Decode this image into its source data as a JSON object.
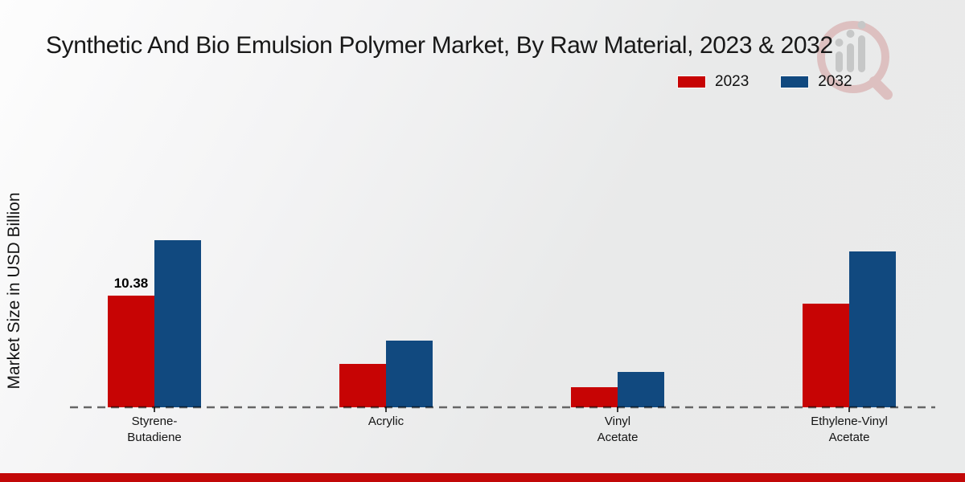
{
  "page": {
    "footer_bar_color": "#c20808"
  },
  "branding": {
    "watermark_icon": "magnifier-bar-chart-logo-watermark",
    "watermark_color": "#cf8f8f"
  },
  "chart_data": {
    "type": "bar",
    "title": "Synthetic And Bio Emulsion Polymer Market, By Raw Material, 2023 & 2032",
    "ylabel": "Market Size in USD Billion",
    "xlabel": "",
    "unit": "USD Billion",
    "categories": [
      [
        "Styrene-",
        "Butadiene"
      ],
      [
        "Acrylic"
      ],
      [
        "Vinyl",
        "Acetate"
      ],
      [
        "Ethylene-Vinyl",
        "Acetate"
      ]
    ],
    "series": [
      {
        "name": "2023",
        "color": "#c70404",
        "values": [
          10.38,
          4.0,
          1.9,
          9.6
        ],
        "data_labels": [
          "10.38",
          null,
          null,
          null
        ]
      },
      {
        "name": "2032",
        "color": "#11497f",
        "values": [
          15.5,
          6.2,
          3.3,
          14.5
        ],
        "data_labels": [
          null,
          null,
          null,
          null
        ]
      }
    ],
    "legend_position": "top-right",
    "grid": false,
    "y_axis_ticks_visible": false,
    "baseline_style": "dashed",
    "ylim": [
      0,
      17
    ]
  }
}
